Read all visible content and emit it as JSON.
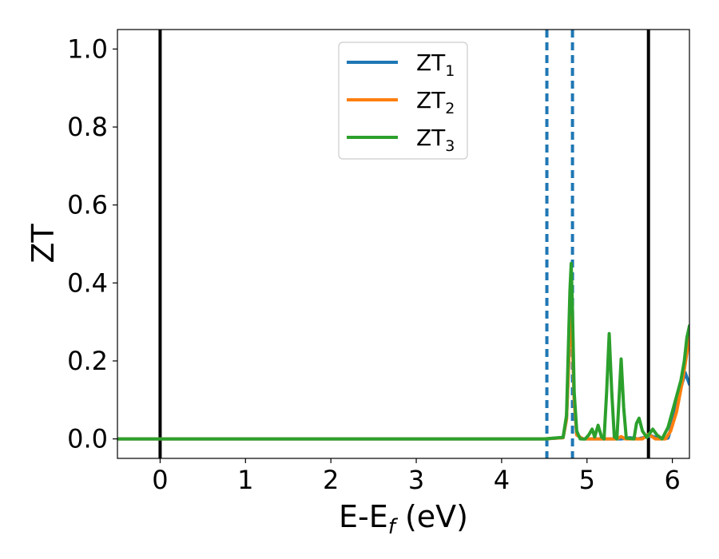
{
  "chart_data": {
    "type": "line",
    "title": "",
    "xlabel": "E-E",
    "xlabel_sub": "f",
    "xlabel_suffix": " (eV)",
    "ylabel": "ZT",
    "xlim": [
      -0.5,
      6.2
    ],
    "ylim": [
      -0.05,
      1.05
    ],
    "xticks": [
      0,
      1,
      2,
      3,
      4,
      5,
      6
    ],
    "xtick_labels": [
      "0",
      "1",
      "2",
      "3",
      "4",
      "5",
      "6"
    ],
    "yticks": [
      0.0,
      0.2,
      0.4,
      0.6,
      0.8,
      1.0
    ],
    "ytick_labels": [
      "0.0",
      "0.2",
      "0.4",
      "0.6",
      "0.8",
      "1.0"
    ],
    "grid": false,
    "legend_position": "top-center",
    "series": [
      {
        "name": "ZT",
        "name_sub": "1",
        "color": "#1f77b4",
        "points": [
          [
            -0.5,
            0.0
          ],
          [
            4.5,
            0.0
          ],
          [
            4.72,
            0.003
          ],
          [
            4.76,
            0.05
          ],
          [
            4.79,
            0.22
          ],
          [
            4.81,
            0.33
          ],
          [
            4.83,
            0.26
          ],
          [
            4.85,
            0.1
          ],
          [
            4.88,
            0.01
          ],
          [
            4.95,
            0.0
          ],
          [
            5.4,
            0.0
          ],
          [
            5.5,
            0.003
          ],
          [
            5.6,
            0.0
          ],
          [
            5.75,
            0.008
          ],
          [
            5.85,
            0.0
          ],
          [
            5.95,
            0.002
          ],
          [
            6.0,
            0.04
          ],
          [
            6.05,
            0.09
          ],
          [
            6.1,
            0.13
          ],
          [
            6.15,
            0.17
          ],
          [
            6.2,
            0.14
          ]
        ]
      },
      {
        "name": "ZT",
        "name_sub": "2",
        "color": "#ff7f0e",
        "points": [
          [
            -0.5,
            0.0
          ],
          [
            4.5,
            0.0
          ],
          [
            4.72,
            0.003
          ],
          [
            4.76,
            0.05
          ],
          [
            4.79,
            0.22
          ],
          [
            4.81,
            0.34
          ],
          [
            4.83,
            0.25
          ],
          [
            4.85,
            0.1
          ],
          [
            4.88,
            0.01
          ],
          [
            4.95,
            0.0
          ],
          [
            5.35,
            0.0
          ],
          [
            5.4,
            0.006
          ],
          [
            5.45,
            0.0
          ],
          [
            5.65,
            0.0
          ],
          [
            5.72,
            0.012
          ],
          [
            5.8,
            0.0
          ],
          [
            5.92,
            0.0
          ],
          [
            5.98,
            0.02
          ],
          [
            6.05,
            0.07
          ],
          [
            6.12,
            0.15
          ],
          [
            6.17,
            0.22
          ],
          [
            6.2,
            0.26
          ]
        ]
      },
      {
        "name": "ZT",
        "name_sub": "3",
        "color": "#2ca02c",
        "points": [
          [
            -0.5,
            0.0
          ],
          [
            4.5,
            0.0
          ],
          [
            4.72,
            0.004
          ],
          [
            4.76,
            0.06
          ],
          [
            4.78,
            0.22
          ],
          [
            4.8,
            0.38
          ],
          [
            4.815,
            0.45
          ],
          [
            4.83,
            0.33
          ],
          [
            4.85,
            0.12
          ],
          [
            4.88,
            0.02
          ],
          [
            4.92,
            0.0
          ],
          [
            4.98,
            0.0
          ],
          [
            5.02,
            0.01
          ],
          [
            5.06,
            0.025
          ],
          [
            5.09,
            0.005
          ],
          [
            5.13,
            0.035
          ],
          [
            5.17,
            0.005
          ],
          [
            5.2,
            0.0
          ],
          [
            5.23,
            0.12
          ],
          [
            5.26,
            0.27
          ],
          [
            5.29,
            0.12
          ],
          [
            5.32,
            0.005
          ],
          [
            5.35,
            0.0
          ],
          [
            5.37,
            0.08
          ],
          [
            5.4,
            0.205
          ],
          [
            5.43,
            0.08
          ],
          [
            5.46,
            0.002
          ],
          [
            5.55,
            0.0
          ],
          [
            5.58,
            0.04
          ],
          [
            5.61,
            0.053
          ],
          [
            5.65,
            0.02
          ],
          [
            5.7,
            0.004
          ],
          [
            5.77,
            0.025
          ],
          [
            5.82,
            0.01
          ],
          [
            5.88,
            0.0
          ],
          [
            5.95,
            0.03
          ],
          [
            6.0,
            0.07
          ],
          [
            6.05,
            0.11
          ],
          [
            6.1,
            0.15
          ],
          [
            6.14,
            0.2
          ],
          [
            6.17,
            0.26
          ],
          [
            6.2,
            0.29
          ]
        ]
      }
    ],
    "vlines": [
      {
        "x": 0.0,
        "color": "#000000",
        "style": "solid"
      },
      {
        "x": 5.72,
        "color": "#000000",
        "style": "solid"
      },
      {
        "x": 4.53,
        "color": "#1f77b4",
        "style": "dashed"
      },
      {
        "x": 4.83,
        "color": "#1f77b4",
        "style": "dashed"
      }
    ]
  }
}
